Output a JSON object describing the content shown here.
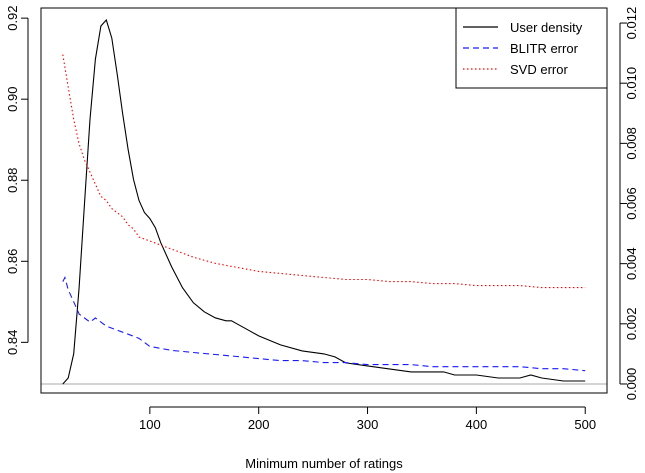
{
  "chart_data": {
    "type": "line",
    "title": "",
    "xlabel": "Minimum number of ratings",
    "ylabel_left": "",
    "ylabel_right": "",
    "xlim": [
      0,
      520
    ],
    "ylim_left": [
      0.8275,
      0.9225
    ],
    "ylim_right": [
      -0.0003,
      0.0125
    ],
    "x_ticks": [
      100,
      200,
      300,
      400,
      500
    ],
    "x_tick_labels": [
      "100",
      "200",
      "300",
      "400",
      "500"
    ],
    "y_left_ticks": [
      0.84,
      0.86,
      0.88,
      0.9,
      0.92
    ],
    "y_left_tick_labels": [
      "0.84",
      "0.86",
      "0.88",
      "0.90",
      "0.92"
    ],
    "y_right_ticks": [
      0.0,
      0.002,
      0.004,
      0.006,
      0.008,
      0.01,
      0.012
    ],
    "y_right_tick_labels": [
      "0.000",
      "0.002",
      "0.004",
      "0.006",
      "0.008",
      "0.010",
      "0.012"
    ],
    "baseline_value_right": 0.0,
    "grid": false,
    "legend_position": "top-right",
    "series": [
      {
        "name": "User density",
        "axis": "right",
        "color": "#000000",
        "dash": "solid",
        "x": [
          20,
          25,
          30,
          35,
          40,
          45,
          50,
          55,
          60,
          65,
          70,
          75,
          80,
          85,
          90,
          95,
          100,
          105,
          110,
          120,
          130,
          140,
          150,
          160,
          170,
          175,
          180,
          190,
          200,
          220,
          240,
          260,
          270,
          280,
          300,
          320,
          340,
          360,
          370,
          380,
          400,
          420,
          440,
          450,
          460,
          480,
          500
        ],
        "y": [
          0.0,
          0.0002,
          0.001,
          0.0032,
          0.006,
          0.0088,
          0.0108,
          0.0119,
          0.0121,
          0.0115,
          0.0103,
          0.009,
          0.0078,
          0.0068,
          0.0061,
          0.0057,
          0.0055,
          0.0052,
          0.0047,
          0.0039,
          0.0032,
          0.0027,
          0.0024,
          0.0022,
          0.0021,
          0.0021,
          0.002,
          0.0018,
          0.0016,
          0.0013,
          0.0011,
          0.001,
          0.0009,
          0.0007,
          0.0006,
          0.0005,
          0.0004,
          0.0004,
          0.0004,
          0.0003,
          0.0003,
          0.0002,
          0.0002,
          0.0003,
          0.0002,
          0.0001,
          0.0001
        ]
      },
      {
        "name": "BLITR error",
        "axis": "left",
        "color": "#1a1aff",
        "dash": "dashed",
        "x": [
          20,
          22,
          25,
          30,
          35,
          40,
          45,
          50,
          55,
          60,
          70,
          80,
          90,
          100,
          110,
          120,
          140,
          160,
          180,
          200,
          220,
          240,
          260,
          280,
          300,
          320,
          340,
          360,
          380,
          400,
          420,
          440,
          460,
          480,
          500
        ],
        "y": [
          0.855,
          0.856,
          0.853,
          0.85,
          0.847,
          0.846,
          0.845,
          0.846,
          0.845,
          0.844,
          0.843,
          0.842,
          0.841,
          0.839,
          0.8385,
          0.838,
          0.8375,
          0.837,
          0.8365,
          0.836,
          0.8355,
          0.8355,
          0.835,
          0.835,
          0.8345,
          0.8345,
          0.8345,
          0.834,
          0.834,
          0.834,
          0.834,
          0.834,
          0.8335,
          0.8335,
          0.833
        ]
      },
      {
        "name": "SVD error",
        "axis": "left",
        "color": "#ff0000",
        "dash": "dotted",
        "x": [
          20,
          25,
          30,
          35,
          40,
          45,
          50,
          55,
          60,
          65,
          70,
          75,
          80,
          85,
          90,
          100,
          110,
          120,
          140,
          160,
          180,
          200,
          220,
          240,
          260,
          280,
          300,
          320,
          340,
          360,
          380,
          400,
          420,
          440,
          460,
          480,
          500
        ],
        "y": [
          0.911,
          0.903,
          0.895,
          0.889,
          0.885,
          0.882,
          0.879,
          0.876,
          0.875,
          0.873,
          0.872,
          0.871,
          0.869,
          0.868,
          0.866,
          0.865,
          0.864,
          0.863,
          0.861,
          0.8595,
          0.8585,
          0.8575,
          0.857,
          0.8565,
          0.856,
          0.8555,
          0.8555,
          0.855,
          0.855,
          0.8545,
          0.8545,
          0.854,
          0.854,
          0.854,
          0.8535,
          0.8535,
          0.8535
        ]
      }
    ]
  }
}
